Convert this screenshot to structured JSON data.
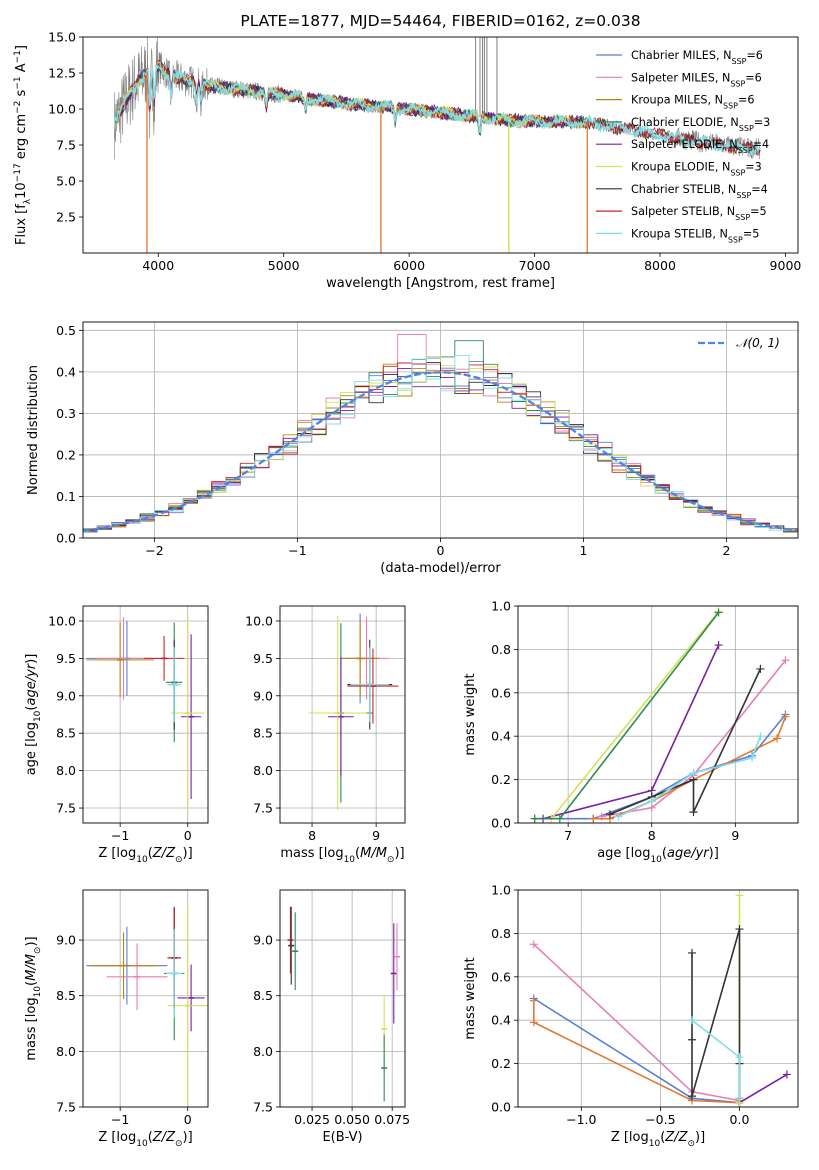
{
  "title": "PLATE=1877, MJD=54464, FIBERID=0162, z=0.038",
  "colors": {
    "Chabrier MILES": "#5b7fd6",
    "Salpeter MILES": "#e57fb8",
    "Kroupa MILES": "#b8860b",
    "Chabrier ELODIE": "#2e8b57",
    "Salpeter ELODIE": "#7a1fa2",
    "Kroupa ELODIE": "#d4e157",
    "Chabrier STELIB": "#333333",
    "Salpeter STELIB": "#c62828",
    "Kroupa STELIB": "#80deea",
    "data": "#808080",
    "gauss": "#4a86e8"
  },
  "legend1": [
    {
      "pre": "Chabrier MILES, N",
      "n": "6"
    },
    {
      "pre": "Salpeter MILES, N",
      "n": "6"
    },
    {
      "pre": "Kroupa MILES, N",
      "n": "6"
    },
    {
      "pre": "Chabrier ELODIE, N",
      "n": "3"
    },
    {
      "pre": "Salpeter ELODIE, N",
      "n": "4"
    },
    {
      "pre": "Kroupa ELODIE, N",
      "n": "3"
    },
    {
      "pre": "Chabrier STELIB, N",
      "n": "4"
    },
    {
      "pre": "Salpeter STELIB, N",
      "n": "5"
    },
    {
      "pre": "Kroupa STELIB, N",
      "n": "5"
    }
  ],
  "legend_sub": "SSP",
  "legend2": "𝒩(0, 1)",
  "chart_data": [
    {
      "id": "spectrum",
      "type": "line",
      "xlabel": "wavelength [Angstrom, rest frame]",
      "ylabel": "Flux [f",
      "xlim": [
        3400,
        9100
      ],
      "ylim": [
        0,
        15
      ],
      "xticks": [
        4000,
        5000,
        6000,
        7000,
        8000,
        9000
      ],
      "yticks": [
        2.5,
        5.0,
        7.5,
        10.0,
        12.5,
        15.0
      ],
      "grid": false,
      "legend": "top-right",
      "continuum": {
        "x": [
          3650,
          3800,
          3900,
          4000,
          4100,
          4300,
          4500,
          4800,
          5000,
          5300,
          5600,
          6000,
          6400,
          6800,
          7200,
          7400,
          7600,
          8000,
          8400,
          8800
        ],
        "y": [
          9.0,
          11.5,
          12.5,
          13.0,
          12.3,
          11.8,
          11.5,
          11.2,
          11.0,
          10.6,
          10.3,
          10.0,
          9.6,
          9.2,
          9.1,
          9.1,
          8.8,
          8.2,
          7.6,
          7.2
        ]
      },
      "dips": [
        {
          "x": 3910,
          "color": "Kroupa MILES"
        },
        {
          "x": 5775,
          "color": "Kroupa MILES"
        },
        {
          "x": 6795,
          "color": "Kroupa ELODIE"
        },
        {
          "x": 7420,
          "color": "Kroupa MILES"
        }
      ],
      "spikes": [
        6530,
        6565,
        6585,
        6600,
        6620,
        6700
      ]
    },
    {
      "id": "residuals",
      "type": "histogram",
      "xlabel": "(data-model)/error",
      "ylabel": "Normed distribution",
      "xlim": [
        -2.5,
        2.5
      ],
      "ylim": [
        0,
        0.52
      ],
      "xticks": [
        -2,
        -1,
        0,
        1,
        2
      ],
      "yticks": [
        0.0,
        0.1,
        0.2,
        0.3,
        0.4,
        0.5
      ],
      "grid": true,
      "legend": "top-right",
      "bin_width": 0.1,
      "peaks": [
        {
          "x": -0.2,
          "y": 0.49,
          "series": "Salpeter MILES"
        },
        {
          "x": 0.2,
          "y": 0.475,
          "series": "Chabrier ELODIE"
        }
      ],
      "gaussian": {
        "mu": 0,
        "sigma": 1
      }
    },
    {
      "id": "age-vs-Z",
      "type": "errorbar",
      "xlabel": "Z [log",
      "ylabel": "age  [log",
      "xlim": [
        -1.55,
        0.3
      ],
      "ylim": [
        7.3,
        10.2
      ],
      "xticks": [
        -1,
        0
      ],
      "yticks": [
        7.5,
        8.0,
        8.5,
        9.0,
        9.5,
        10.0
      ],
      "grid": true,
      "points": [
        {
          "x": -0.9,
          "y": 9.5,
          "xerr": 0.6,
          "yerr": 0.5,
          "c": "Chabrier MILES"
        },
        {
          "x": -0.95,
          "y": 9.5,
          "xerr": 0.4,
          "yerr": 0.55,
          "c": "Salpeter MILES"
        },
        {
          "x": -1.0,
          "y": 9.48,
          "xerr": 0.5,
          "yerr": 0.5,
          "c": "Kroupa MILES"
        },
        {
          "x": -0.2,
          "y": 9.18,
          "xerr": 0.12,
          "yerr": 0.8,
          "c": "Chabrier ELODIE"
        },
        {
          "x": 0.05,
          "y": 8.72,
          "xerr": 0.15,
          "yerr": 1.1,
          "c": "Salpeter ELODIE"
        },
        {
          "x": 0.0,
          "y": 8.77,
          "xerr": 0.25,
          "yerr": 1.3,
          "c": "Kroupa ELODIE"
        },
        {
          "x": -0.2,
          "y": 9.15,
          "xerr": 0.1,
          "yerr": 0.6,
          "c": "Chabrier STELIB"
        },
        {
          "x": -0.35,
          "y": 9.5,
          "xerr": 0.3,
          "yerr": 0.3,
          "c": "Salpeter STELIB"
        },
        {
          "x": -0.2,
          "y": 9.15,
          "xerr": 0.1,
          "yerr": 0.5,
          "c": "Kroupa STELIB"
        }
      ]
    },
    {
      "id": "age-vs-mass",
      "type": "errorbar",
      "xlabel": "mass [log",
      "ylabel": "",
      "xlim": [
        7.5,
        9.45
      ],
      "ylim": [
        7.3,
        10.2
      ],
      "xticks": [
        8,
        9
      ],
      "yticks": [
        7.5,
        8.0,
        8.5,
        9.0,
        9.5,
        10.0
      ],
      "grid": true,
      "points": [
        {
          "x": 8.75,
          "y": 9.5,
          "xerr": 0.3,
          "yerr": 0.6,
          "c": "Chabrier MILES"
        },
        {
          "x": 8.85,
          "y": 9.5,
          "xerr": 0.35,
          "yerr": 0.55,
          "c": "Salpeter MILES"
        },
        {
          "x": 8.75,
          "y": 9.5,
          "xerr": 0.3,
          "yerr": 0.5,
          "c": "Kroupa MILES"
        },
        {
          "x": 8.45,
          "y": 8.77,
          "xerr": 0.5,
          "yerr": 1.2,
          "c": "Chabrier ELODIE"
        },
        {
          "x": 8.45,
          "y": 8.72,
          "xerr": 0.2,
          "yerr": 0.8,
          "c": "Salpeter ELODIE"
        },
        {
          "x": 8.4,
          "y": 8.77,
          "xerr": 0.45,
          "yerr": 1.3,
          "c": "Kroupa ELODIE"
        },
        {
          "x": 8.9,
          "y": 9.15,
          "xerr": 0.35,
          "yerr": 0.6,
          "c": "Chabrier STELIB"
        },
        {
          "x": 8.95,
          "y": 9.13,
          "xerr": 0.4,
          "yerr": 0.5,
          "c": "Salpeter STELIB"
        },
        {
          "x": 8.9,
          "y": 9.15,
          "xerr": 0.3,
          "yerr": 0.5,
          "c": "Kroupa STELIB"
        }
      ]
    },
    {
      "id": "weight-vs-age",
      "type": "line",
      "xlabel": "age  [log",
      "ylabel": "mass weight",
      "xlim": [
        6.4,
        9.75
      ],
      "ylim": [
        0,
        1.0
      ],
      "xticks": [
        7,
        8,
        9
      ],
      "yticks": [
        0.0,
        0.2,
        0.4,
        0.6,
        0.8,
        1.0
      ],
      "grid": true,
      "series": [
        {
          "c": "Chabrier MILES",
          "x": [
            6.6,
            7.3,
            8.0,
            8.5,
            9.2,
            9.6
          ],
          "y": [
            0.02,
            0.02,
            0.12,
            0.23,
            0.31,
            0.5
          ]
        },
        {
          "c": "Salpeter MILES",
          "x": [
            7.4,
            8.0,
            8.5,
            9.6
          ],
          "y": [
            0.03,
            0.07,
            0.22,
            0.75
          ]
        },
        {
          "c": "Kroupa MILES",
          "x": [
            7.3,
            7.5,
            8.0,
            8.5,
            9.5,
            9.6
          ],
          "y": [
            0.02,
            0.02,
            0.1,
            0.2,
            0.39,
            0.49
          ]
        },
        {
          "c": "Salpeter ELODIE",
          "x": [
            6.7,
            8.0,
            8.8
          ],
          "y": [
            0.02,
            0.15,
            0.82
          ]
        },
        {
          "c": "Kroupa ELODIE",
          "x": [
            6.6,
            6.8,
            8.8
          ],
          "y": [
            0.02,
            0.02,
            0.975
          ]
        },
        {
          "c": "Chabrier ELODIE",
          "x": [
            6.6,
            6.9,
            8.8
          ],
          "y": [
            0.02,
            0.02,
            0.97
          ]
        },
        {
          "c": "Chabrier STELIB",
          "x": [
            7.5,
            8.0,
            8.5,
            8.5,
            9.3
          ],
          "y": [
            0.04,
            0.12,
            0.2,
            0.05,
            0.71
          ]
        },
        {
          "c": "Kroupa STELIB",
          "x": [
            7.6,
            8.0,
            8.5,
            9.2,
            9.3
          ],
          "y": [
            0.03,
            0.1,
            0.23,
            0.3,
            0.4
          ]
        }
      ]
    },
    {
      "id": "mass-vs-Z",
      "type": "errorbar",
      "xlabel": "Z [log",
      "ylabel": "mass [log",
      "xlim": [
        -1.55,
        0.3
      ],
      "ylim": [
        7.5,
        9.45
      ],
      "xticks": [
        -1,
        0
      ],
      "yticks": [
        7.5,
        8.0,
        8.5,
        9.0
      ],
      "grid": true,
      "points": [
        {
          "x": -0.9,
          "y": 8.77,
          "xerr": 0.6,
          "yerr": 0.35,
          "c": "Chabrier MILES"
        },
        {
          "x": -0.75,
          "y": 8.67,
          "xerr": 0.45,
          "yerr": 0.3,
          "c": "Salpeter MILES"
        },
        {
          "x": -0.95,
          "y": 8.77,
          "xerr": 0.5,
          "yerr": 0.3,
          "c": "Kroupa MILES"
        },
        {
          "x": -0.2,
          "y": 8.7,
          "xerr": 0.15,
          "yerr": 0.6,
          "c": "Chabrier ELODIE"
        },
        {
          "x": 0.05,
          "y": 8.48,
          "xerr": 0.2,
          "yerr": 0.3,
          "c": "Salpeter ELODIE"
        },
        {
          "x": 0.0,
          "y": 8.41,
          "xerr": 0.3,
          "yerr": 0.9,
          "c": "Kroupa ELODIE"
        },
        {
          "x": -0.2,
          "y": 8.84,
          "xerr": 0.1,
          "yerr": 0.45,
          "c": "Chabrier STELIB"
        },
        {
          "x": -0.2,
          "y": 8.84,
          "xerr": 0.1,
          "yerr": 0.45,
          "c": "Salpeter STELIB"
        },
        {
          "x": -0.2,
          "y": 8.7,
          "xerr": 0.12,
          "yerr": 0.4,
          "c": "Kroupa STELIB"
        }
      ]
    },
    {
      "id": "mass-vs-EBV",
      "type": "errorbar",
      "xlabel": "E(B-V)",
      "ylabel": "",
      "xlim": [
        0.005,
        0.083
      ],
      "ylim": [
        7.5,
        9.45
      ],
      "xticks": [
        0.025,
        0.05,
        0.075
      ],
      "yticks": [
        7.5,
        8.0,
        8.5,
        9.0
      ],
      "grid": true,
      "points": [
        {
          "x": 0.0115,
          "y": 9.0,
          "yerr": 0.3,
          "c": "Salpeter STELIB"
        },
        {
          "x": 0.012,
          "y": 8.95,
          "yerr": 0.35,
          "c": "Chabrier STELIB"
        },
        {
          "x": 0.0145,
          "y": 8.9,
          "yerr": 0.35,
          "c": "Chabrier ELODIE"
        },
        {
          "x": 0.07,
          "y": 8.2,
          "yerr": 0.3,
          "c": "Kroupa ELODIE"
        },
        {
          "x": 0.07,
          "y": 7.85,
          "yerr": 0.3,
          "c": "Chabrier ELODIE"
        },
        {
          "x": 0.076,
          "y": 8.7,
          "yerr": 0.45,
          "c": "Salpeter ELODIE"
        },
        {
          "x": 0.078,
          "y": 8.85,
          "yerr": 0.3,
          "c": "Salpeter MILES"
        }
      ]
    },
    {
      "id": "weight-vs-Z",
      "type": "line",
      "xlabel": "Z [log",
      "ylabel": "mass weight",
      "xlim": [
        -1.4,
        0.37
      ],
      "ylim": [
        0,
        1.0
      ],
      "xticks": [
        -1.0,
        -0.5,
        0.0
      ],
      "yticks": [
        0.0,
        0.2,
        0.4,
        0.6,
        0.8,
        1.0
      ],
      "grid": true,
      "series": [
        {
          "c": "Chabrier MILES",
          "x": [
            -1.3,
            -0.3,
            0.0
          ],
          "y": [
            0.5,
            0.04,
            0.02
          ]
        },
        {
          "c": "Salpeter MILES",
          "x": [
            -1.3,
            -0.3,
            0.0
          ],
          "y": [
            0.75,
            0.07,
            0.03
          ]
        },
        {
          "c": "Kroupa MILES",
          "x": [
            -1.3,
            -1.3,
            -0.3,
            0.0
          ],
          "y": [
            0.49,
            0.39,
            0.03,
            0.02
          ]
        },
        {
          "c": "Salpeter ELODIE",
          "x": [
            0.0,
            0.3
          ],
          "y": [
            0.02,
            0.15
          ]
        },
        {
          "c": "Kroupa ELODIE",
          "x": [
            0.0,
            0.0
          ],
          "y": [
            0.02,
            0.975
          ]
        },
        {
          "c": "Chabrier STELIB",
          "x": [
            -0.3,
            -0.3,
            -0.3,
            0.0,
            0.0,
            0.0
          ],
          "y": [
            0.71,
            0.31,
            0.05,
            0.82,
            0.2,
            0.04
          ]
        },
        {
          "c": "Kroupa STELIB",
          "x": [
            -0.3,
            0.0,
            0.0
          ],
          "y": [
            0.4,
            0.23,
            0.04
          ]
        }
      ]
    }
  ]
}
